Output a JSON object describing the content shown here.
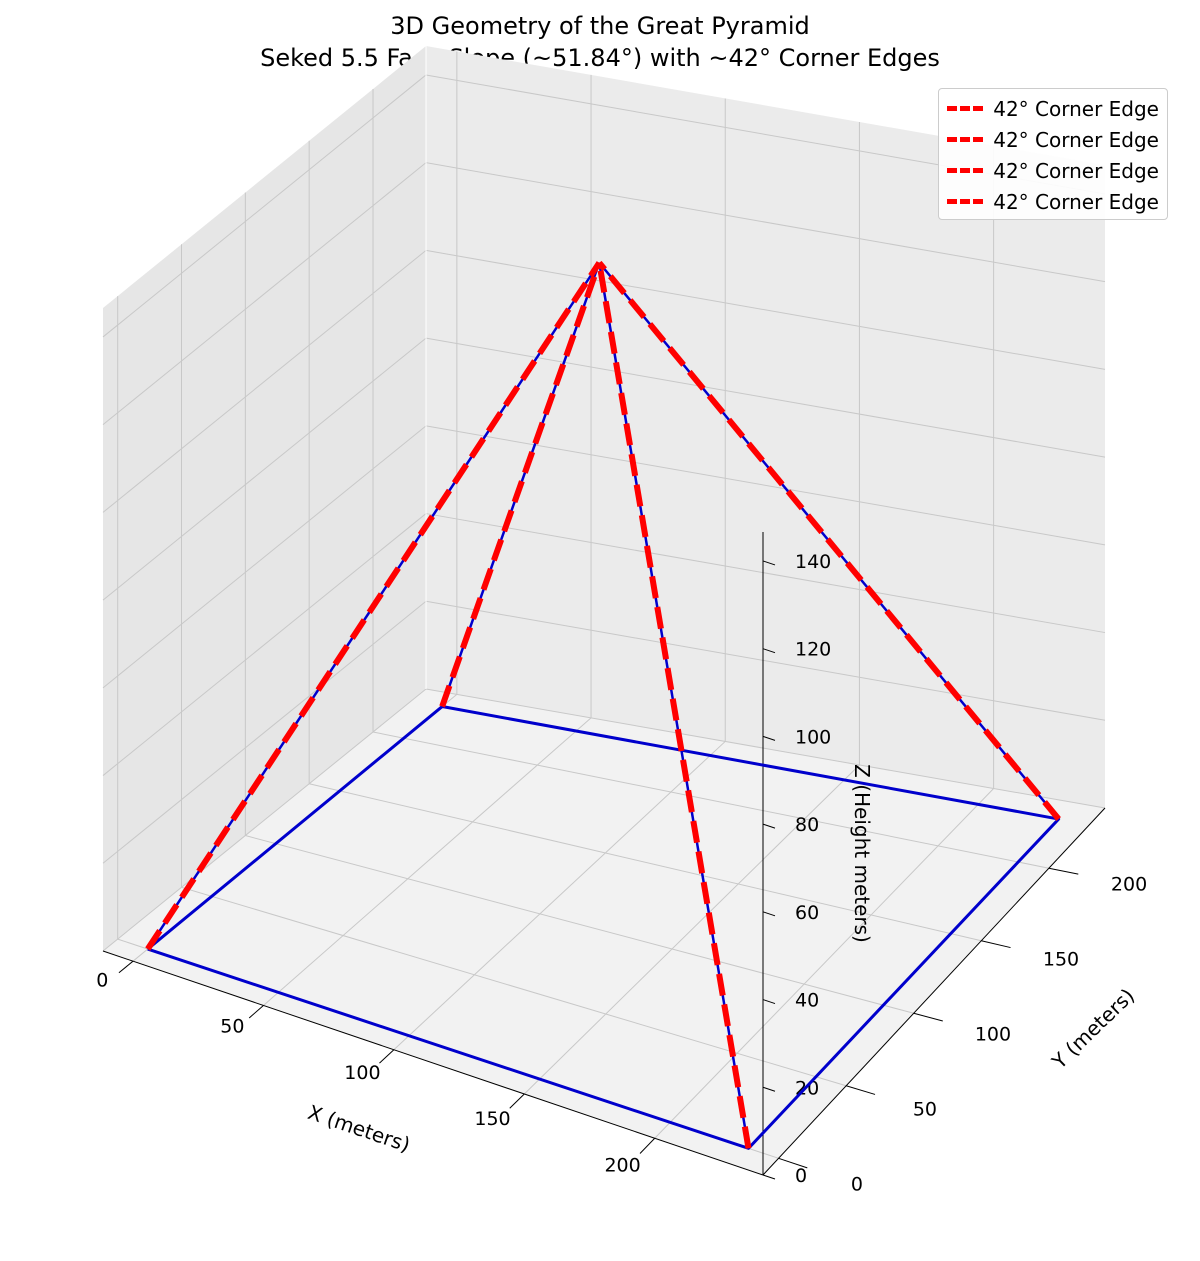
{
  "chart_data": {
    "type": "line3d",
    "title": "3D Geometry of the Great Pyramid",
    "subtitle": "Seked 5.5 Face Slope (~51.84°) with ~42° Corner Edges",
    "xlabel": "X (meters)",
    "ylabel": "Y (meters)",
    "zlabel": "Z (Height meters)",
    "xlim": [
      -11.5,
      241.5
    ],
    "ylim": [
      -11.5,
      241.5
    ],
    "zlim": [
      0,
      146.6
    ],
    "x_ticks": [
      0,
      50,
      100,
      150,
      200
    ],
    "y_ticks": [
      0,
      50,
      100,
      150,
      200
    ],
    "z_ticks": [
      0,
      20,
      40,
      60,
      80,
      100,
      120,
      140
    ],
    "grid": true,
    "legend_position": "upper right",
    "base_color": "#0000cc",
    "edge_color": "#ff0000",
    "base": {
      "x": [
        0,
        230,
        230,
        0,
        0
      ],
      "y": [
        0,
        0,
        230,
        230,
        0
      ],
      "z": [
        0,
        0,
        0,
        0,
        0
      ]
    },
    "apex": [
      115,
      115,
      146.6
    ],
    "series": [
      {
        "name": "42° Corner Edge",
        "x": [
          0,
          115
        ],
        "y": [
          0,
          115
        ],
        "z": [
          0,
          146.6
        ]
      },
      {
        "name": "42° Corner Edge",
        "x": [
          230,
          115
        ],
        "y": [
          0,
          115
        ],
        "z": [
          0,
          146.6
        ]
      },
      {
        "name": "42° Corner Edge",
        "x": [
          230,
          115
        ],
        "y": [
          230,
          115
        ],
        "z": [
          0,
          146.6
        ]
      },
      {
        "name": "42° Corner Edge",
        "x": [
          0,
          115
        ],
        "y": [
          230,
          115
        ],
        "z": [
          0,
          146.6
        ]
      }
    ]
  }
}
